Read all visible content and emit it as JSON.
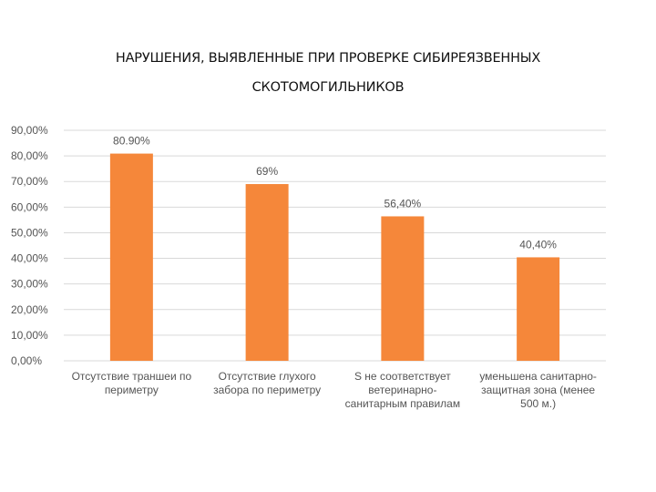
{
  "chart_data": {
    "type": "bar",
    "title_lines": [
      "НАРУШЕНИЯ, ВЫЯВЛЕННЫЕ ПРИ ПРОВЕРКЕ СИБИРЕЯЗВЕННЫХ",
      "СКОТОМОГИЛЬНИКОВ"
    ],
    "categories": [
      [
        "Отсутствие траншеи по",
        "периметру"
      ],
      [
        "Отсутствие глухого",
        "забора по периметру"
      ],
      [
        "S не соответствует",
        "ветеринарно-",
        "санитарным правилам"
      ],
      [
        "уменьшена санитарно-",
        "защитная зона (менее",
        "500 м.)"
      ]
    ],
    "values": [
      80.9,
      69,
      56.4,
      40.4
    ],
    "data_labels": [
      "80.90%",
      "69%",
      "56,40%",
      "40,40%"
    ],
    "y_ticks": [
      "0,00%",
      "10,00%",
      "20,00%",
      "30,00%",
      "40,00%",
      "50,00%",
      "60,00%",
      "70,00%",
      "80,00%",
      "90,00%"
    ],
    "ylim": [
      0,
      90
    ],
    "grid": true,
    "legend": "none",
    "bar_color": "#f5873a",
    "grid_color": "#d9d9d9"
  }
}
